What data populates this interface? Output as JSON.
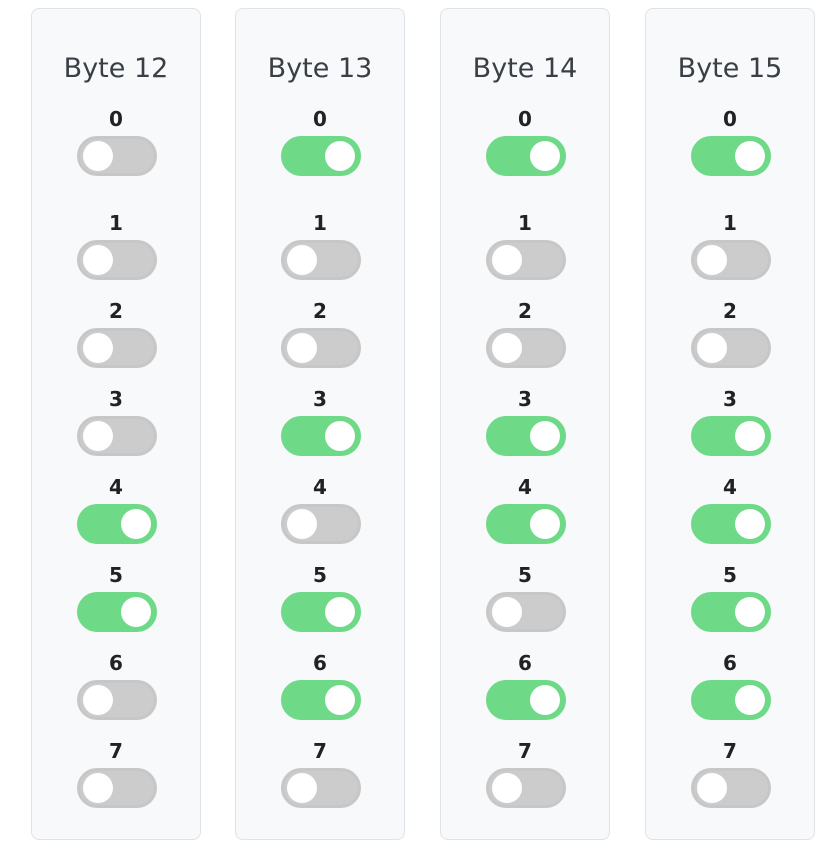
{
  "bytes": [
    {
      "title": "Byte 12",
      "bits": [
        {
          "label": "0",
          "on": false
        },
        {
          "label": "1",
          "on": false
        },
        {
          "label": "2",
          "on": false
        },
        {
          "label": "3",
          "on": false
        },
        {
          "label": "4",
          "on": true
        },
        {
          "label": "5",
          "on": true
        },
        {
          "label": "6",
          "on": false
        },
        {
          "label": "7",
          "on": false
        }
      ]
    },
    {
      "title": "Byte 13",
      "bits": [
        {
          "label": "0",
          "on": true
        },
        {
          "label": "1",
          "on": false
        },
        {
          "label": "2",
          "on": false
        },
        {
          "label": "3",
          "on": true
        },
        {
          "label": "4",
          "on": false
        },
        {
          "label": "5",
          "on": true
        },
        {
          "label": "6",
          "on": true
        },
        {
          "label": "7",
          "on": false
        }
      ]
    },
    {
      "title": "Byte 14",
      "bits": [
        {
          "label": "0",
          "on": true
        },
        {
          "label": "1",
          "on": false
        },
        {
          "label": "2",
          "on": false
        },
        {
          "label": "3",
          "on": true
        },
        {
          "label": "4",
          "on": true
        },
        {
          "label": "5",
          "on": false
        },
        {
          "label": "6",
          "on": true
        },
        {
          "label": "7",
          "on": false
        }
      ]
    },
    {
      "title": "Byte 15",
      "bits": [
        {
          "label": "0",
          "on": true
        },
        {
          "label": "1",
          "on": false
        },
        {
          "label": "2",
          "on": false
        },
        {
          "label": "3",
          "on": true
        },
        {
          "label": "4",
          "on": true
        },
        {
          "label": "5",
          "on": true
        },
        {
          "label": "6",
          "on": true
        },
        {
          "label": "7",
          "on": false
        }
      ]
    }
  ],
  "colors": {
    "toggle_on": "#6ed986",
    "toggle_off": "#cccccc",
    "panel_bg": "#f8f9fb"
  }
}
